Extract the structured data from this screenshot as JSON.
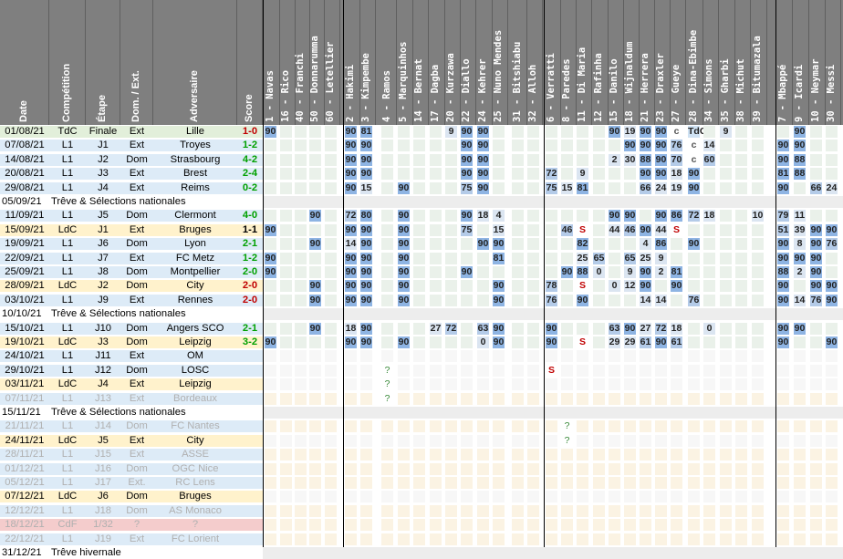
{
  "headers": {
    "date": "Date",
    "competition": "Compétition",
    "etape": "Étape",
    "dom_ext": "Dom. / Ext.",
    "adversaire": "Adversaire",
    "score": "Score"
  },
  "players": [
    "1 - Navas",
    "16 - Rico",
    "40 - Franchi",
    "50 - Donnarumma",
    "60 - Letellier",
    "2 - Hakimi",
    "3 - Kimpembe",
    "4 - Ramos",
    "5 - Marquinhos",
    "14 - Bernat",
    "17 - Dagba",
    "20 - Kurzawa",
    "22 - Diallo",
    "24 - Kehrer",
    "25 - Nuno Mendes",
    "31 - Bitshiabu",
    "32 - Alloh",
    "6 - Verratti",
    "8 - Paredes",
    "11 - Di Maria",
    "12 - Rafinha",
    "15 - Danilo",
    "18 - Wijnaldum",
    "21 - Herrera",
    "23 - Draxler",
    "27 - Gueye",
    "28 - Dina-Ebimbe",
    "34 - Simons",
    "35 - Gharbi",
    "38 - Michut",
    "39 - Bitumazala",
    "7 - Mbappé",
    "9 - Icardi",
    "10 - Neymar",
    "30 - Messi"
  ],
  "matches": [
    {
      "date": "01/08/21",
      "comp": "TdC",
      "etape": "Finale",
      "lieu": "Ext",
      "adv": "Lille",
      "score": "1-0",
      "sc": "#c00000",
      "bg": "#e2efda",
      "row": "#ffffff",
      "cells": {
        "0": "90",
        "5": "90",
        "6": "81",
        "11": "9",
        "12": "90",
        "13": "90",
        "21": "90",
        "22": "19",
        "23": "90",
        "24": "90",
        "25": "c",
        "26": "TdC",
        "28": "9",
        "32": "90"
      }
    },
    {
      "date": "07/08/21",
      "comp": "L1",
      "etape": "J1",
      "lieu": "Ext",
      "adv": "Troyes",
      "score": "1-2",
      "sc": "#00a000",
      "bg": "#ddebf7",
      "row": "#ffffff",
      "cells": {
        "5": "90",
        "6": "90",
        "12": "90",
        "13": "90",
        "22": "90",
        "23": "90",
        "24": "90",
        "25": "76",
        "26": "c",
        "27": "14",
        "31": "90",
        "32": "90"
      }
    },
    {
      "date": "14/08/21",
      "comp": "L1",
      "etape": "J2",
      "lieu": "Dom",
      "adv": "Strasbourg",
      "score": "4-2",
      "sc": "#00a000",
      "bg": "#ddebf7",
      "row": "#ffffff",
      "cells": {
        "5": "90",
        "6": "90",
        "12": "90",
        "13": "90",
        "21": "2",
        "22": "30",
        "23": "88",
        "24": "90",
        "25": "70",
        "26": "c",
        "27": "60",
        "31": "90",
        "32": "88"
      }
    },
    {
      "date": "20/08/21",
      "comp": "L1",
      "etape": "J3",
      "lieu": "Ext",
      "adv": "Brest",
      "score": "2-4",
      "sc": "#00a000",
      "bg": "#ddebf7",
      "row": "#ffffff",
      "cells": {
        "5": "90",
        "6": "90",
        "12": "90",
        "13": "90",
        "17": "72",
        "19": "9",
        "23": "90",
        "24": "90",
        "25": "18",
        "26": "90",
        "31": "81",
        "32": "88"
      }
    },
    {
      "date": "29/08/21",
      "comp": "L1",
      "etape": "J4",
      "lieu": "Ext",
      "adv": "Reims",
      "score": "0-2",
      "sc": "#00a000",
      "bg": "#ddebf7",
      "row": "#ffffff",
      "cells": {
        "5": "90",
        "6": "15",
        "8": "90",
        "12": "75",
        "13": "90",
        "17": "75",
        "18": "15",
        "19": "81",
        "23": "66",
        "24": "24",
        "25": "19",
        "26": "90",
        "31": "90",
        "33": "66",
        "34": "24"
      }
    },
    {
      "break": true,
      "date": "05/09/21",
      "text": "Trêve & Sélections nationales"
    },
    {
      "date": "11/09/21",
      "comp": "L1",
      "etape": "J5",
      "lieu": "Dom",
      "adv": "Clermont",
      "score": "4-0",
      "sc": "#00a000",
      "bg": "#ddebf7",
      "row": "#ffffff",
      "cells": {
        "3": "90",
        "5": "72",
        "6": "80",
        "8": "90",
        "12": "90",
        "13": "18",
        "14": "4",
        "21": "90",
        "22": "90",
        "24": "90",
        "25": "86",
        "26": "72",
        "27": "18",
        "30": "10",
        "31": "79",
        "32": "11"
      }
    },
    {
      "date": "15/09/21",
      "comp": "LdC",
      "etape": "J1",
      "lieu": "Ext",
      "adv": "Bruges",
      "score": "1-1",
      "sc": "#000000",
      "bg": "#fff2cc",
      "row": "#ffffff",
      "cells": {
        "0": "90",
        "5": "90",
        "6": "90",
        "8": "90",
        "12": "75",
        "14": "15",
        "18": "46",
        "19": "S",
        "21": "44",
        "22": "46",
        "23": "90",
        "24": "44",
        "25": "S",
        "31": "51",
        "32": "39",
        "33": "90",
        "34": "90"
      }
    },
    {
      "date": "19/09/21",
      "comp": "L1",
      "etape": "J6",
      "lieu": "Dom",
      "adv": "Lyon",
      "score": "2-1",
      "sc": "#00a000",
      "bg": "#ddebf7",
      "row": "#ffffff",
      "cells": {
        "3": "90",
        "5": "14",
        "6": "90",
        "8": "90",
        "13": "90",
        "14": "90",
        "19": "82",
        "23": "4",
        "24": "86",
        "26": "90",
        "31": "90",
        "32": "8",
        "33": "90",
        "34": "76"
      }
    },
    {
      "date": "22/09/21",
      "comp": "L1",
      "etape": "J7",
      "lieu": "Ext",
      "adv": "FC Metz",
      "score": "1-2",
      "sc": "#00a000",
      "bg": "#ddebf7",
      "row": "#ffffff",
      "cells": {
        "0": "90",
        "5": "90",
        "6": "90",
        "8": "90",
        "14": "81",
        "19": "25",
        "20": "65",
        "22": "65",
        "23": "25",
        "24": "9",
        "31": "90",
        "32": "90",
        "33": "90"
      }
    },
    {
      "date": "25/09/21",
      "comp": "L1",
      "etape": "J8",
      "lieu": "Dom",
      "adv": "Montpellier",
      "score": "2-0",
      "sc": "#00a000",
      "bg": "#ddebf7",
      "row": "#ffffff",
      "cells": {
        "0": "90",
        "5": "90",
        "6": "90",
        "8": "90",
        "12": "90",
        "18": "90",
        "19": "88",
        "20": "0",
        "22": "9",
        "23": "90",
        "24": "2",
        "25": "81",
        "31": "88",
        "32": "2",
        "33": "90"
      }
    },
    {
      "date": "28/09/21",
      "comp": "LdC",
      "etape": "J2",
      "lieu": "Dom",
      "adv": "City",
      "score": "2-0",
      "sc": "#c00000",
      "bg": "#fff2cc",
      "row": "#ffffff",
      "cells": {
        "3": "90",
        "5": "90",
        "6": "90",
        "8": "90",
        "14": "90",
        "17": "78",
        "19": "S",
        "21": "0",
        "22": "12",
        "23": "90",
        "25": "90",
        "31": "90",
        "33": "90",
        "34": "90"
      }
    },
    {
      "date": "03/10/21",
      "comp": "L1",
      "etape": "J9",
      "lieu": "Ext",
      "adv": "Rennes",
      "score": "2-0",
      "sc": "#c00000",
      "bg": "#ddebf7",
      "row": "#ffffff",
      "cells": {
        "3": "90",
        "5": "90",
        "6": "90",
        "8": "90",
        "14": "90",
        "17": "76",
        "19": "90",
        "23": "14",
        "24": "14",
        "26": "76",
        "31": "90",
        "32": "14",
        "33": "76",
        "34": "90"
      }
    },
    {
      "break": true,
      "date": "10/10/21",
      "text": "Trêve & Sélections nationales"
    },
    {
      "date": "15/10/21",
      "comp": "L1",
      "etape": "J10",
      "lieu": "Dom",
      "adv": "Angers SCO",
      "score": "2-1",
      "sc": "#00a000",
      "bg": "#ddebf7",
      "row": "#ffffff",
      "cells": {
        "3": "90",
        "5": "18",
        "6": "90",
        "10": "27",
        "11": "72",
        "13": "63",
        "14": "90",
        "17": "90",
        "21": "63",
        "22": "90",
        "23": "27",
        "24": "72",
        "25": "18",
        "27": "0",
        "31": "90",
        "32": "90"
      }
    },
    {
      "date": "19/10/21",
      "comp": "LdC",
      "etape": "J3",
      "lieu": "Dom",
      "adv": "Leipzig",
      "score": "3-2",
      "sc": "#00a000",
      "bg": "#fff2cc",
      "row": "#ffffff",
      "cells": {
        "0": "90",
        "5": "90",
        "6": "90",
        "8": "90",
        "13": "0",
        "14": "90",
        "17": "90",
        "19": "S",
        "21": "29",
        "22": "29",
        "23": "61",
        "24": "90",
        "25": "61",
        "31": "90",
        "34": "90"
      }
    },
    {
      "date": "24/10/21",
      "comp": "L1",
      "etape": "J11",
      "lieu": "Ext",
      "adv": "OM",
      "score": "",
      "sc": "#000",
      "bg": "#ddebf7",
      "row": "#ffffff",
      "cells": {}
    },
    {
      "date": "29/10/21",
      "comp": "L1",
      "etape": "J12",
      "lieu": "Dom",
      "adv": "LOSC",
      "score": "",
      "sc": "#000",
      "bg": "#ddebf7",
      "row": "#ffffff",
      "cells": {
        "7": "?",
        "17": "S"
      }
    },
    {
      "date": "03/11/21",
      "comp": "LdC",
      "etape": "J4",
      "lieu": "Ext",
      "adv": "Leipzig",
      "score": "",
      "sc": "#000",
      "bg": "#fff2cc",
      "row": "#ffffff",
      "cells": {
        "7": "?"
      }
    },
    {
      "date": "07/11/21",
      "comp": "L1",
      "etape": "J13",
      "lieu": "Ext",
      "adv": "Bordeaux",
      "score": "",
      "sc": "#000",
      "bg": "#ddebf7",
      "row": "#ffffff",
      "faded": true,
      "cells": {
        "7": "?"
      }
    },
    {
      "break": true,
      "date": "15/11/21",
      "text": "Trêve & Sélections nationales"
    },
    {
      "date": "21/11/21",
      "comp": "L1",
      "etape": "J14",
      "lieu": "Dom",
      "adv": "FC Nantes",
      "score": "",
      "sc": "#000",
      "bg": "#ddebf7",
      "row": "#ffffff",
      "faded": true,
      "cells": {
        "18": "?"
      }
    },
    {
      "date": "24/11/21",
      "comp": "LdC",
      "etape": "J5",
      "lieu": "Ext",
      "adv": "City",
      "score": "",
      "sc": "#000",
      "bg": "#fff2cc",
      "row": "#ffffff",
      "cells": {
        "18": "?"
      }
    },
    {
      "date": "28/11/21",
      "comp": "L1",
      "etape": "J15",
      "lieu": "Ext",
      "adv": "ASSE",
      "score": "",
      "sc": "#000",
      "bg": "#ddebf7",
      "row": "#ffffff",
      "faded": true,
      "cells": {}
    },
    {
      "date": "01/12/21",
      "comp": "L1",
      "etape": "J16",
      "lieu": "Dom",
      "adv": "OGC Nice",
      "score": "",
      "sc": "#000",
      "bg": "#ddebf7",
      "row": "#ffffff",
      "faded": true,
      "cells": {}
    },
    {
      "date": "05/12/21",
      "comp": "L1",
      "etape": "J17",
      "lieu": "Ext.",
      "adv": "RC Lens",
      "score": "",
      "sc": "#000",
      "bg": "#ddebf7",
      "row": "#ffffff",
      "faded": true,
      "cells": {}
    },
    {
      "date": "07/12/21",
      "comp": "LdC",
      "etape": "J6",
      "lieu": "Dom",
      "adv": "Bruges",
      "score": "",
      "sc": "#000",
      "bg": "#fff2cc",
      "row": "#ffffff",
      "cells": {}
    },
    {
      "date": "12/12/21",
      "comp": "L1",
      "etape": "J18",
      "lieu": "Dom",
      "adv": "AS Monaco",
      "score": "",
      "sc": "#000",
      "bg": "#ddebf7",
      "row": "#ffffff",
      "faded": true,
      "cells": {}
    },
    {
      "date": "18/12/21",
      "comp": "CdF",
      "etape": "1/32",
      "lieu": "?",
      "adv": "?",
      "score": "",
      "sc": "#000",
      "bg": "#f4cccc",
      "row": "#ffffff",
      "faded": true,
      "cells": {}
    },
    {
      "date": "22/12/21",
      "comp": "L1",
      "etape": "J19",
      "lieu": "Ext",
      "adv": "FC Lorient",
      "score": "",
      "sc": "#000",
      "bg": "#ddebf7",
      "row": "#ffffff",
      "faded": true,
      "cells": {}
    },
    {
      "break": true,
      "date": "31/12/21",
      "text": "Trêve hivernale"
    }
  ]
}
